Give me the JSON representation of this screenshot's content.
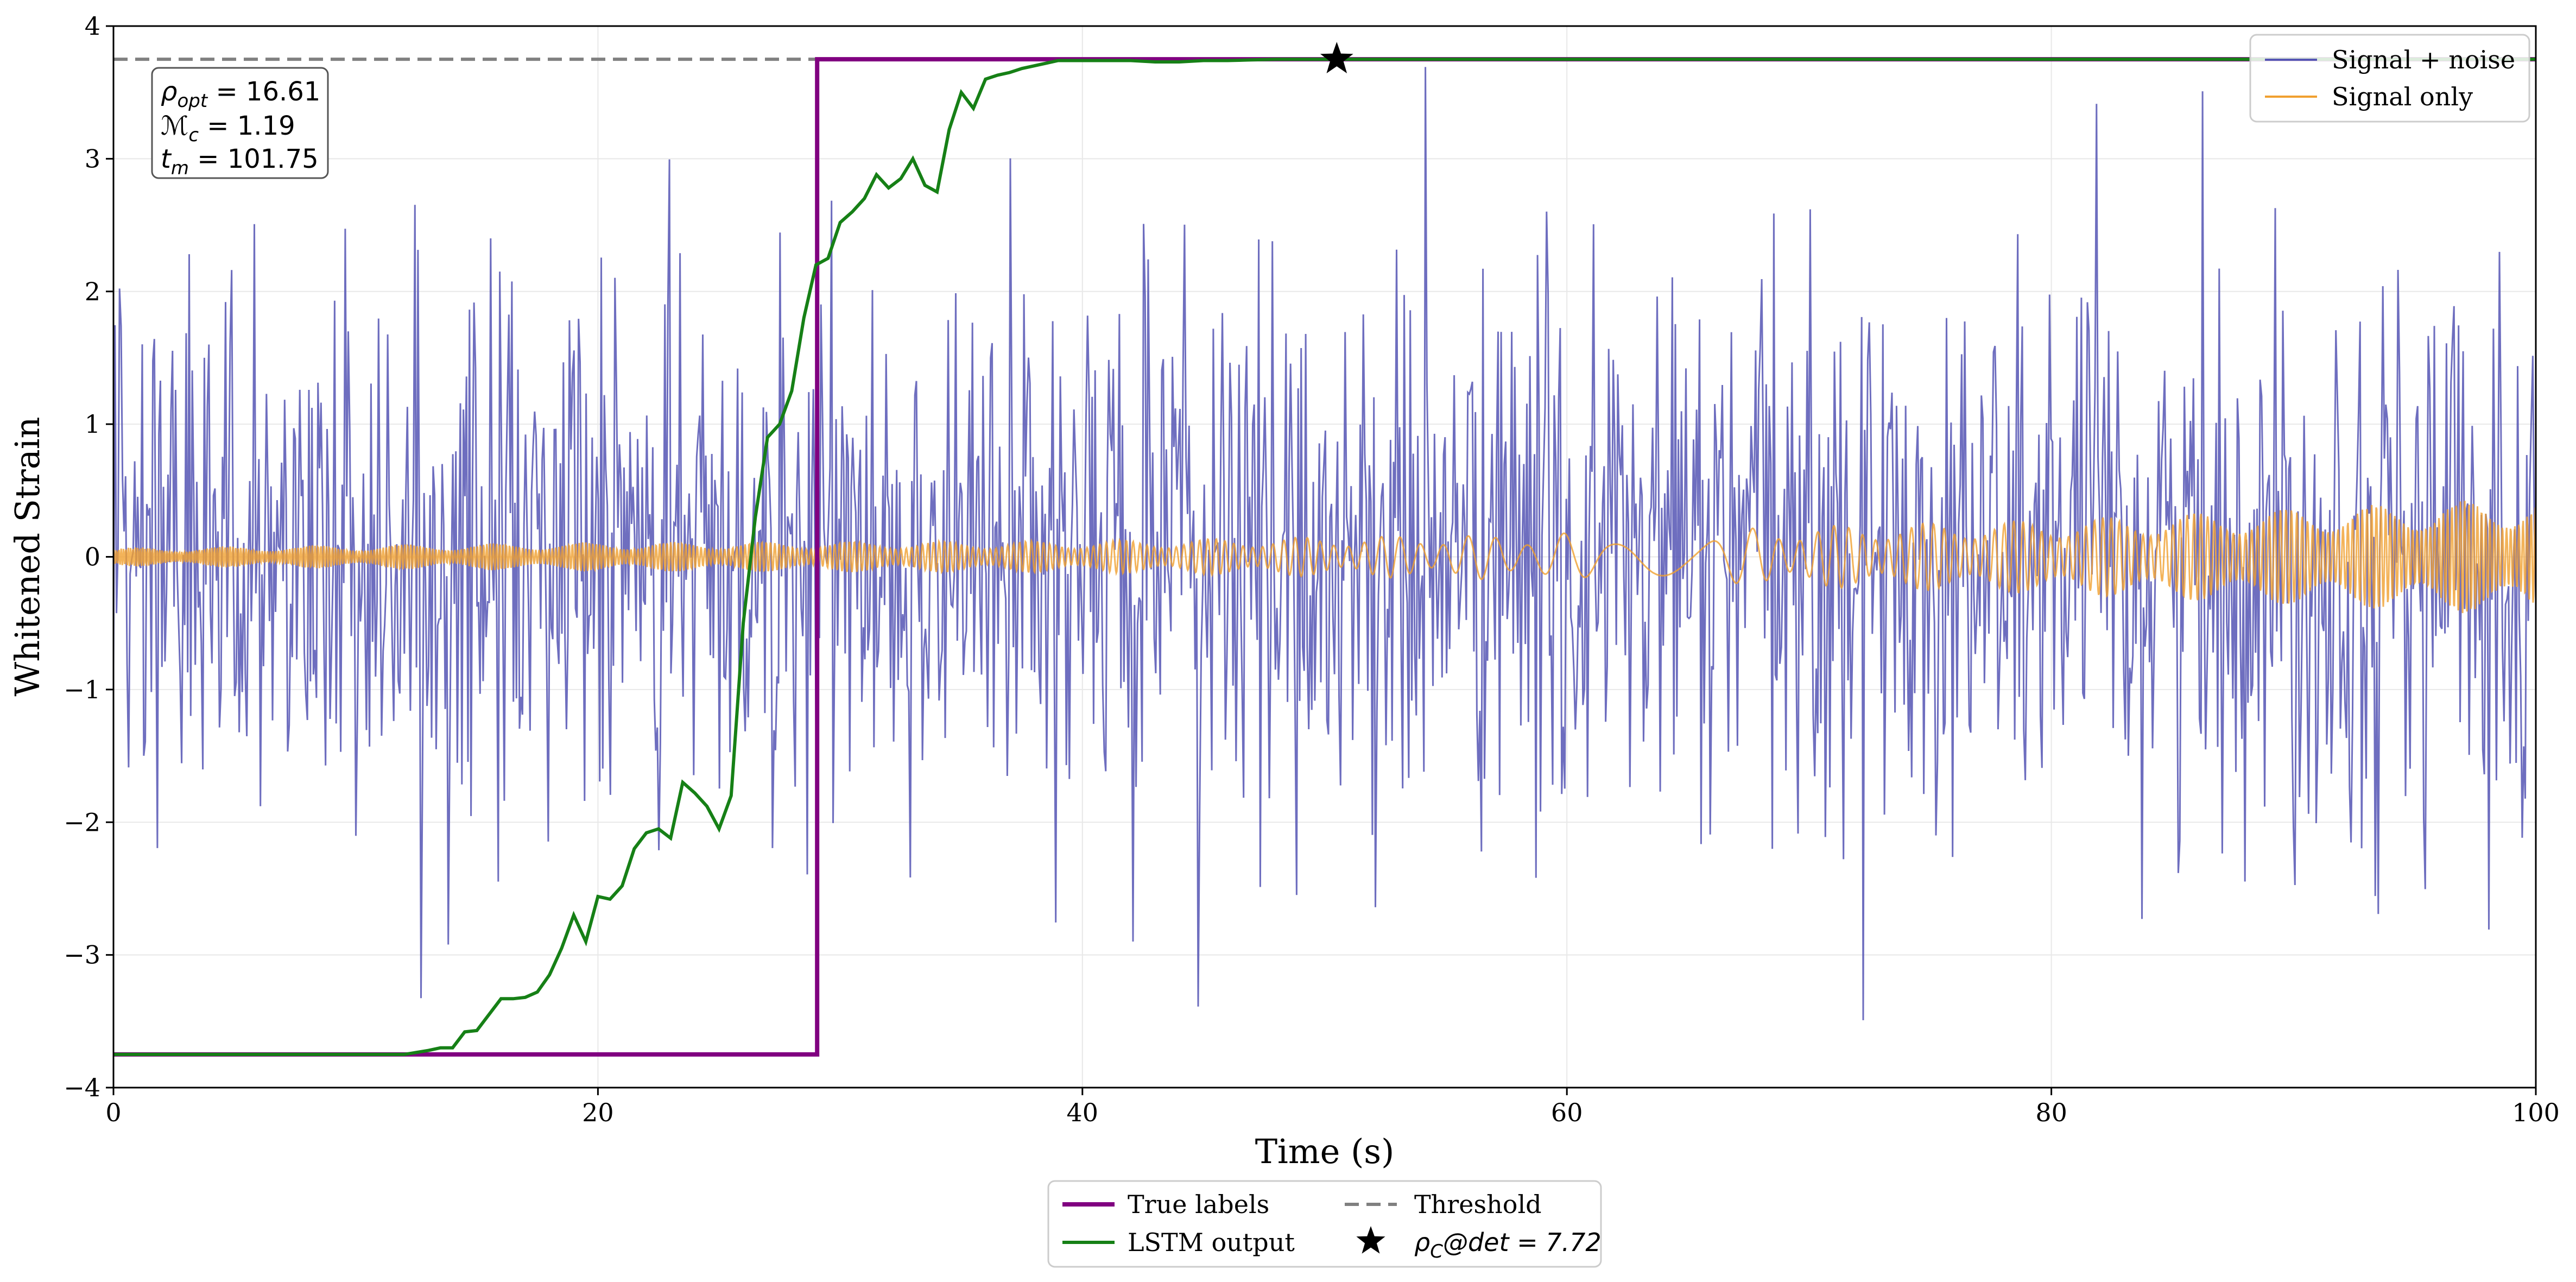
{
  "chart_data": {
    "type": "line",
    "title": "",
    "xlabel": "Time (s)",
    "ylabel": "Whitened Strain",
    "xlim": [
      0,
      100
    ],
    "ylim": [
      -4,
      4
    ],
    "xticks": [
      0,
      20,
      40,
      60,
      80,
      100
    ],
    "xtick_labels": [
      "0",
      "20",
      "40",
      "60",
      "80",
      "100"
    ],
    "yticks": [
      -4,
      -3,
      -2,
      -1,
      0,
      1,
      2,
      3,
      4
    ],
    "ytick_labels": [
      "−4",
      "−3",
      "−2",
      "−1",
      "0",
      "1",
      "2",
      "3",
      "4"
    ],
    "grid": true,
    "colors": {
      "signal_noise": "#5555b4",
      "signal_only": "#f0a030",
      "true_labels": "#800080",
      "lstm_output": "#168016",
      "threshold": "#808080",
      "marker": "#000000"
    },
    "series": [
      {
        "name": "Signal + noise",
        "kind": "noise",
        "x_range": [
          0,
          100
        ],
        "sample_count": 1600,
        "std": 1.05,
        "seed": 17
      },
      {
        "name": "Signal only",
        "kind": "chirp",
        "x_range": [
          0,
          100
        ],
        "amplitude_envelope": [
          [
            0,
            0.07
          ],
          [
            20,
            0.11
          ],
          [
            40,
            0.12
          ],
          [
            60,
            0.18
          ],
          [
            80,
            0.28
          ],
          [
            100,
            0.45
          ]
        ]
      },
      {
        "name": "True labels",
        "kind": "step",
        "x": [
          0,
          29.05,
          29.05,
          100
        ],
        "y": [
          -3.75,
          -3.75,
          3.75,
          3.75
        ]
      },
      {
        "name": "LSTM output",
        "kind": "line",
        "x": [
          0,
          12,
          13,
          13.5,
          14,
          14.5,
          15,
          16,
          16.5,
          17,
          17.5,
          18,
          18.5,
          19,
          19.5,
          20,
          20.5,
          21,
          21.5,
          22,
          22.5,
          23,
          23.5,
          24,
          24.5,
          25,
          25.5,
          26,
          26.5,
          27,
          27.5,
          28,
          28.5,
          29,
          29.5,
          30,
          30.5,
          31,
          31.5,
          32,
          32.5,
          33,
          33.5,
          34,
          34.5,
          35,
          35.5,
          36,
          36.5,
          37,
          37.5,
          38,
          38.5,
          39,
          40,
          41,
          42,
          43,
          44,
          45,
          46,
          47,
          48,
          100
        ],
        "y": [
          -3.75,
          -3.75,
          -3.72,
          -3.7,
          -3.7,
          -3.58,
          -3.57,
          -3.33,
          -3.33,
          -3.32,
          -3.28,
          -3.15,
          -2.95,
          -2.7,
          -2.9,
          -2.56,
          -2.58,
          -2.48,
          -2.2,
          -2.08,
          -2.05,
          -2.12,
          -1.7,
          -1.78,
          -1.88,
          -2.05,
          -1.8,
          -0.5,
          0.3,
          0.9,
          1.0,
          1.25,
          1.8,
          2.2,
          2.25,
          2.52,
          2.6,
          2.7,
          2.88,
          2.78,
          2.85,
          3.0,
          2.8,
          2.75,
          3.22,
          3.5,
          3.38,
          3.6,
          3.63,
          3.65,
          3.68,
          3.7,
          3.72,
          3.74,
          3.74,
          3.74,
          3.74,
          3.73,
          3.73,
          3.74,
          3.74,
          3.745,
          3.75,
          3.75
        ]
      },
      {
        "name": "Threshold",
        "kind": "hline",
        "y": 3.75
      },
      {
        "name": "ρC@det = 7.72",
        "kind": "marker",
        "x": 50.5,
        "y": 3.75
      }
    ],
    "legend_upper": {
      "placement": "top-right",
      "entries": [
        "Signal + noise",
        "Signal only"
      ]
    },
    "legend_lower": {
      "placement": "bottom-center outside",
      "entries": [
        "True labels",
        "Threshold",
        "LSTM output",
        "ρC@det = 7.72"
      ]
    },
    "annotation": {
      "placement": "top-left",
      "lines": [
        {
          "symbol": "ρ",
          "sub": "opt",
          "value": " = 16.61"
        },
        {
          "symbol": "ℳ",
          "sub": "c",
          "value": " = 1.19"
        },
        {
          "symbol": "t",
          "sub": "m",
          "value": " = 101.75"
        }
      ]
    },
    "marker_label": {
      "symbol": "ρ",
      "sub": "C",
      "value": "@det = 7.72"
    }
  }
}
